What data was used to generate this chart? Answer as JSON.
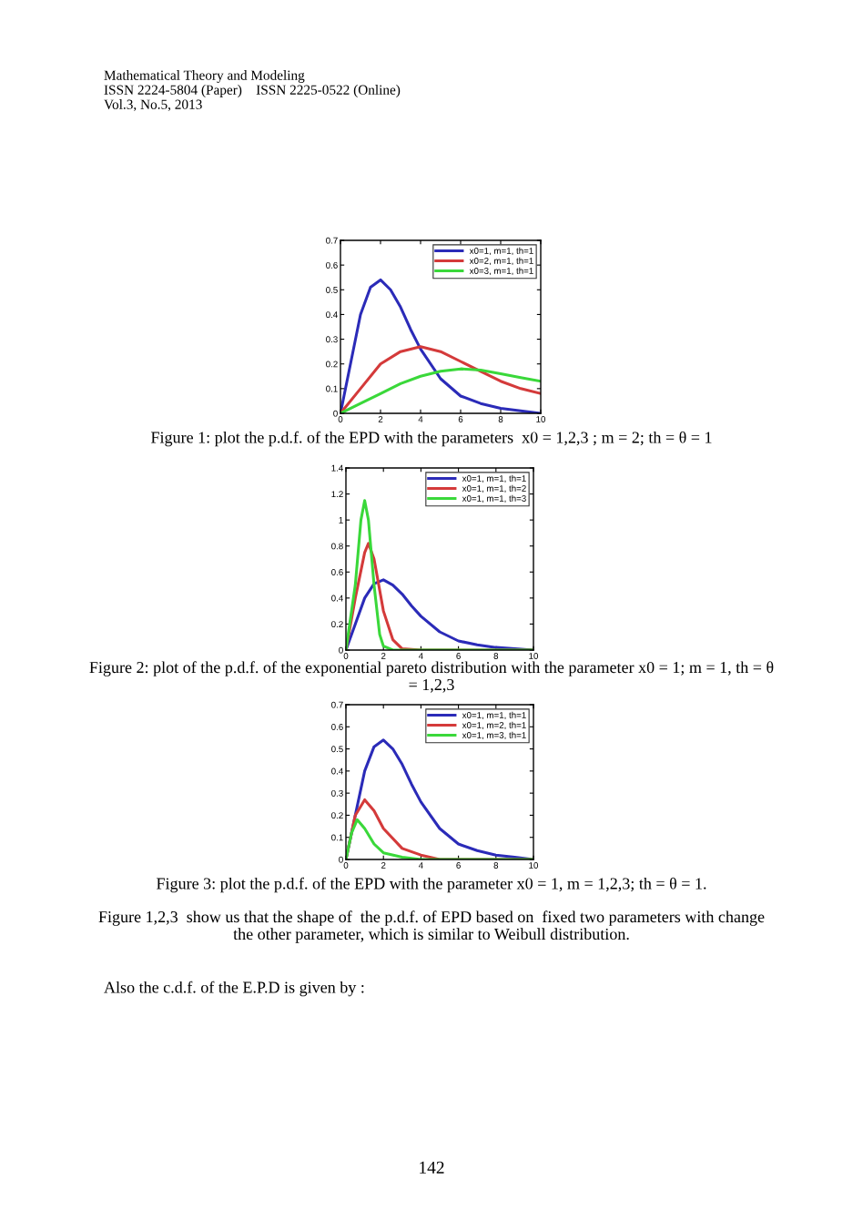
{
  "chart_data": [
    {
      "type": "line",
      "xlim": [
        0,
        10
      ],
      "xticks": [
        0,
        2,
        4,
        6,
        8,
        10
      ],
      "ylim": [
        0,
        0.7
      ],
      "yticks": [
        0,
        0.1,
        0.2,
        0.3,
        0.4,
        0.5,
        0.6,
        0.7
      ],
      "grid": false,
      "legend": "top right",
      "marker": "none",
      "line_style": "solid",
      "series": [
        {
          "name": "x0=1, m=1, th=1",
          "color": "#2b2bb8",
          "x": [
            0,
            0.5,
            1,
            1.5,
            2,
            2.5,
            3,
            3.5,
            4,
            5,
            6,
            7,
            8,
            9,
            10
          ],
          "values": [
            0,
            0.2,
            0.4,
            0.51,
            0.54,
            0.5,
            0.43,
            0.34,
            0.26,
            0.14,
            0.07,
            0.04,
            0.02,
            0.01,
            0
          ]
        },
        {
          "name": "x0=2, m=1, th=1",
          "color": "#d43a3a",
          "x": [
            0,
            1,
            2,
            3,
            4,
            5,
            6,
            7,
            8,
            9,
            10
          ],
          "values": [
            0,
            0.1,
            0.2,
            0.25,
            0.27,
            0.25,
            0.21,
            0.17,
            0.13,
            0.1,
            0.08
          ]
        },
        {
          "name": "x0=3, m=1, th=1",
          "color": "#3ad83a",
          "x": [
            0,
            1,
            2,
            3,
            4,
            5,
            6,
            7,
            8,
            9,
            10
          ],
          "values": [
            0,
            0.04,
            0.08,
            0.12,
            0.15,
            0.17,
            0.18,
            0.175,
            0.16,
            0.145,
            0.13
          ]
        }
      ],
      "annotations": [
        "Mathematical Theory and Modeling",
        "ISSN 2224-5804 (Paper)    ISSN 2225-0522 (Online)",
        "Vol.3, No.5, 2013",
        "Figure 1: plot the p.d.f. of the EPD with the parameters  x0 = 1,2,3 ; m = 2; th = θ = 1"
      ]
    },
    {
      "type": "line",
      "xlim": [
        0,
        10
      ],
      "xticks": [
        0,
        2,
        4,
        6,
        8,
        10
      ],
      "ylim": [
        0,
        1.4
      ],
      "yticks": [
        0,
        0.2,
        0.4,
        0.6,
        0.8,
        1,
        1.2,
        1.4
      ],
      "grid": false,
      "legend": "top right",
      "marker": "none",
      "line_style": "solid",
      "series": [
        {
          "name": "x0=1, m=1, th=1",
          "color": "#2b2bb8",
          "x": [
            0,
            0.5,
            1,
            1.5,
            2,
            2.5,
            3,
            3.5,
            4,
            5,
            6,
            7,
            8,
            9,
            10
          ],
          "values": [
            0,
            0.2,
            0.4,
            0.51,
            0.54,
            0.5,
            0.43,
            0.34,
            0.26,
            0.14,
            0.07,
            0.04,
            0.02,
            0.01,
            0
          ]
        },
        {
          "name": "x0=1, m=1, th=2",
          "color": "#d43a3a",
          "x": [
            0,
            0.5,
            1,
            1.2,
            1.5,
            2,
            2.5,
            3,
            4,
            10
          ],
          "values": [
            0,
            0.4,
            0.75,
            0.82,
            0.7,
            0.3,
            0.08,
            0.01,
            0,
            0
          ]
        },
        {
          "name": "x0=1, m=1, th=3",
          "color": "#3ad83a",
          "x": [
            0,
            0.5,
            0.8,
            1,
            1.2,
            1.5,
            1.8,
            2,
            2.5,
            10
          ],
          "values": [
            0,
            0.5,
            1.0,
            1.15,
            1.0,
            0.5,
            0.12,
            0.03,
            0,
            0
          ]
        }
      ],
      "annotations": [
        "Figure 2: plot of the p.d.f. of the exponential pareto distribution with the parameter x0 = 1; m = 1, th = θ = 1,2,3"
      ]
    },
    {
      "type": "line",
      "xlim": [
        0,
        10
      ],
      "xticks": [
        0,
        2,
        4,
        6,
        8,
        10
      ],
      "ylim": [
        0,
        0.7
      ],
      "yticks": [
        0,
        0.1,
        0.2,
        0.3,
        0.4,
        0.5,
        0.6,
        0.7
      ],
      "grid": false,
      "legend": "top right",
      "marker": "none",
      "line_style": "solid",
      "series": [
        {
          "name": "x0=1, m=1, th=1",
          "color": "#2b2bb8",
          "x": [
            0,
            0.5,
            1,
            1.5,
            2,
            2.5,
            3,
            3.5,
            4,
            5,
            6,
            7,
            8,
            9,
            10
          ],
          "values": [
            0,
            0.2,
            0.4,
            0.51,
            0.54,
            0.5,
            0.43,
            0.34,
            0.26,
            0.14,
            0.07,
            0.04,
            0.02,
            0.01,
            0
          ]
        },
        {
          "name": "x0=1, m=2, th=1",
          "color": "#d43a3a",
          "x": [
            0,
            0.5,
            1,
            1.5,
            2,
            3,
            4,
            5,
            10
          ],
          "values": [
            0,
            0.2,
            0.27,
            0.22,
            0.14,
            0.05,
            0.02,
            0,
            0
          ]
        },
        {
          "name": "x0=1, m=3, th=1",
          "color": "#3ad83a",
          "x": [
            0,
            0.3,
            0.6,
            1,
            1.5,
            2,
            3,
            4,
            10
          ],
          "values": [
            0,
            0.12,
            0.18,
            0.14,
            0.07,
            0.03,
            0.01,
            0,
            0
          ]
        }
      ],
      "annotations": [
        "Figure 3: plot the p.d.f. of the EPD with the parameter x0 = 1, m = 1,2,3; th = θ = 1.",
        "Figure 1,2,3  show us that the shape of  the p.d.f. of EPD based on  fixed two parameters with change the other parameter, which is similar to Weibull distribution.",
        "Also the c.d.f. of the E.P.D is given by :",
        "142"
      ]
    }
  ]
}
